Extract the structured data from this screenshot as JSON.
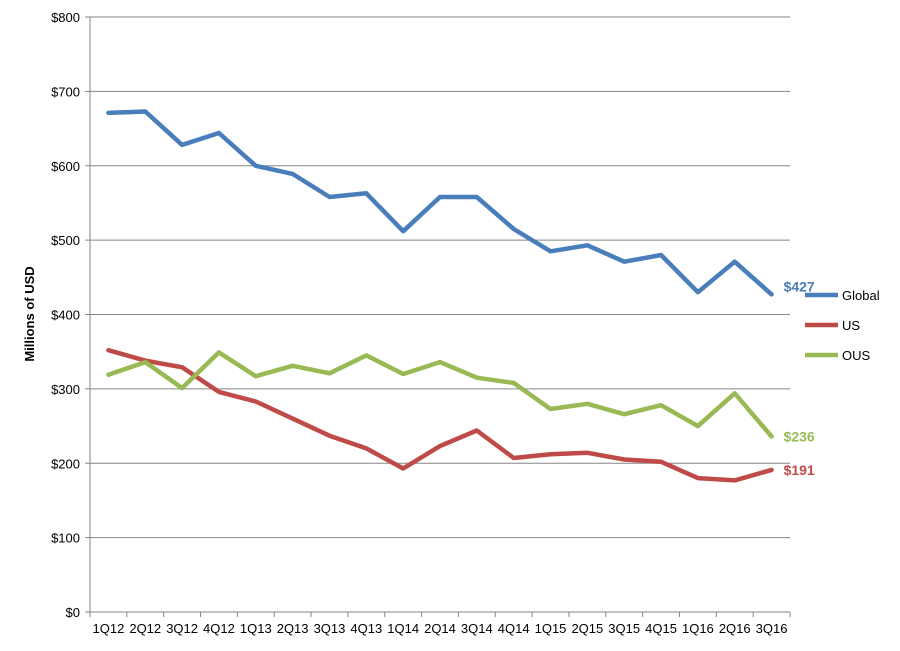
{
  "chart_data": {
    "type": "line",
    "title": "",
    "xlabel": "",
    "ylabel": "Millions of USD",
    "ylim": [
      0,
      800
    ],
    "y_ticks": [
      "$0",
      "$100",
      "$200",
      "$300",
      "$400",
      "$500",
      "$600",
      "$700",
      "$800"
    ],
    "y_tick_values": [
      0,
      100,
      200,
      300,
      400,
      500,
      600,
      700,
      800
    ],
    "grid": true,
    "legend_position": "right",
    "categories": [
      "1Q12",
      "2Q12",
      "3Q12",
      "4Q12",
      "1Q13",
      "2Q13",
      "3Q13",
      "4Q13",
      "1Q14",
      "2Q14",
      "3Q14",
      "4Q14",
      "1Q15",
      "2Q15",
      "3Q15",
      "4Q15",
      "1Q16",
      "2Q16",
      "3Q16"
    ],
    "series": [
      {
        "name": "Global",
        "color": "#4a7ebb",
        "values": [
          671,
          673,
          628,
          644,
          600,
          589,
          558,
          563,
          512,
          558,
          558,
          515,
          485,
          493,
          471,
          480,
          430,
          471,
          427
        ],
        "end_label": "$427"
      },
      {
        "name": "US",
        "color": "#be4b48",
        "values": [
          352,
          338,
          329,
          296,
          283,
          260,
          237,
          220,
          193,
          223,
          244,
          207,
          212,
          214,
          205,
          202,
          180,
          177,
          191
        ],
        "end_label": "$191"
      },
      {
        "name": "OUS",
        "color": "#98b954",
        "values": [
          319,
          336,
          301,
          349,
          317,
          331,
          321,
          345,
          320,
          336,
          315,
          308,
          273,
          280,
          266,
          278,
          250,
          294,
          236
        ],
        "end_label": "$236"
      }
    ]
  }
}
